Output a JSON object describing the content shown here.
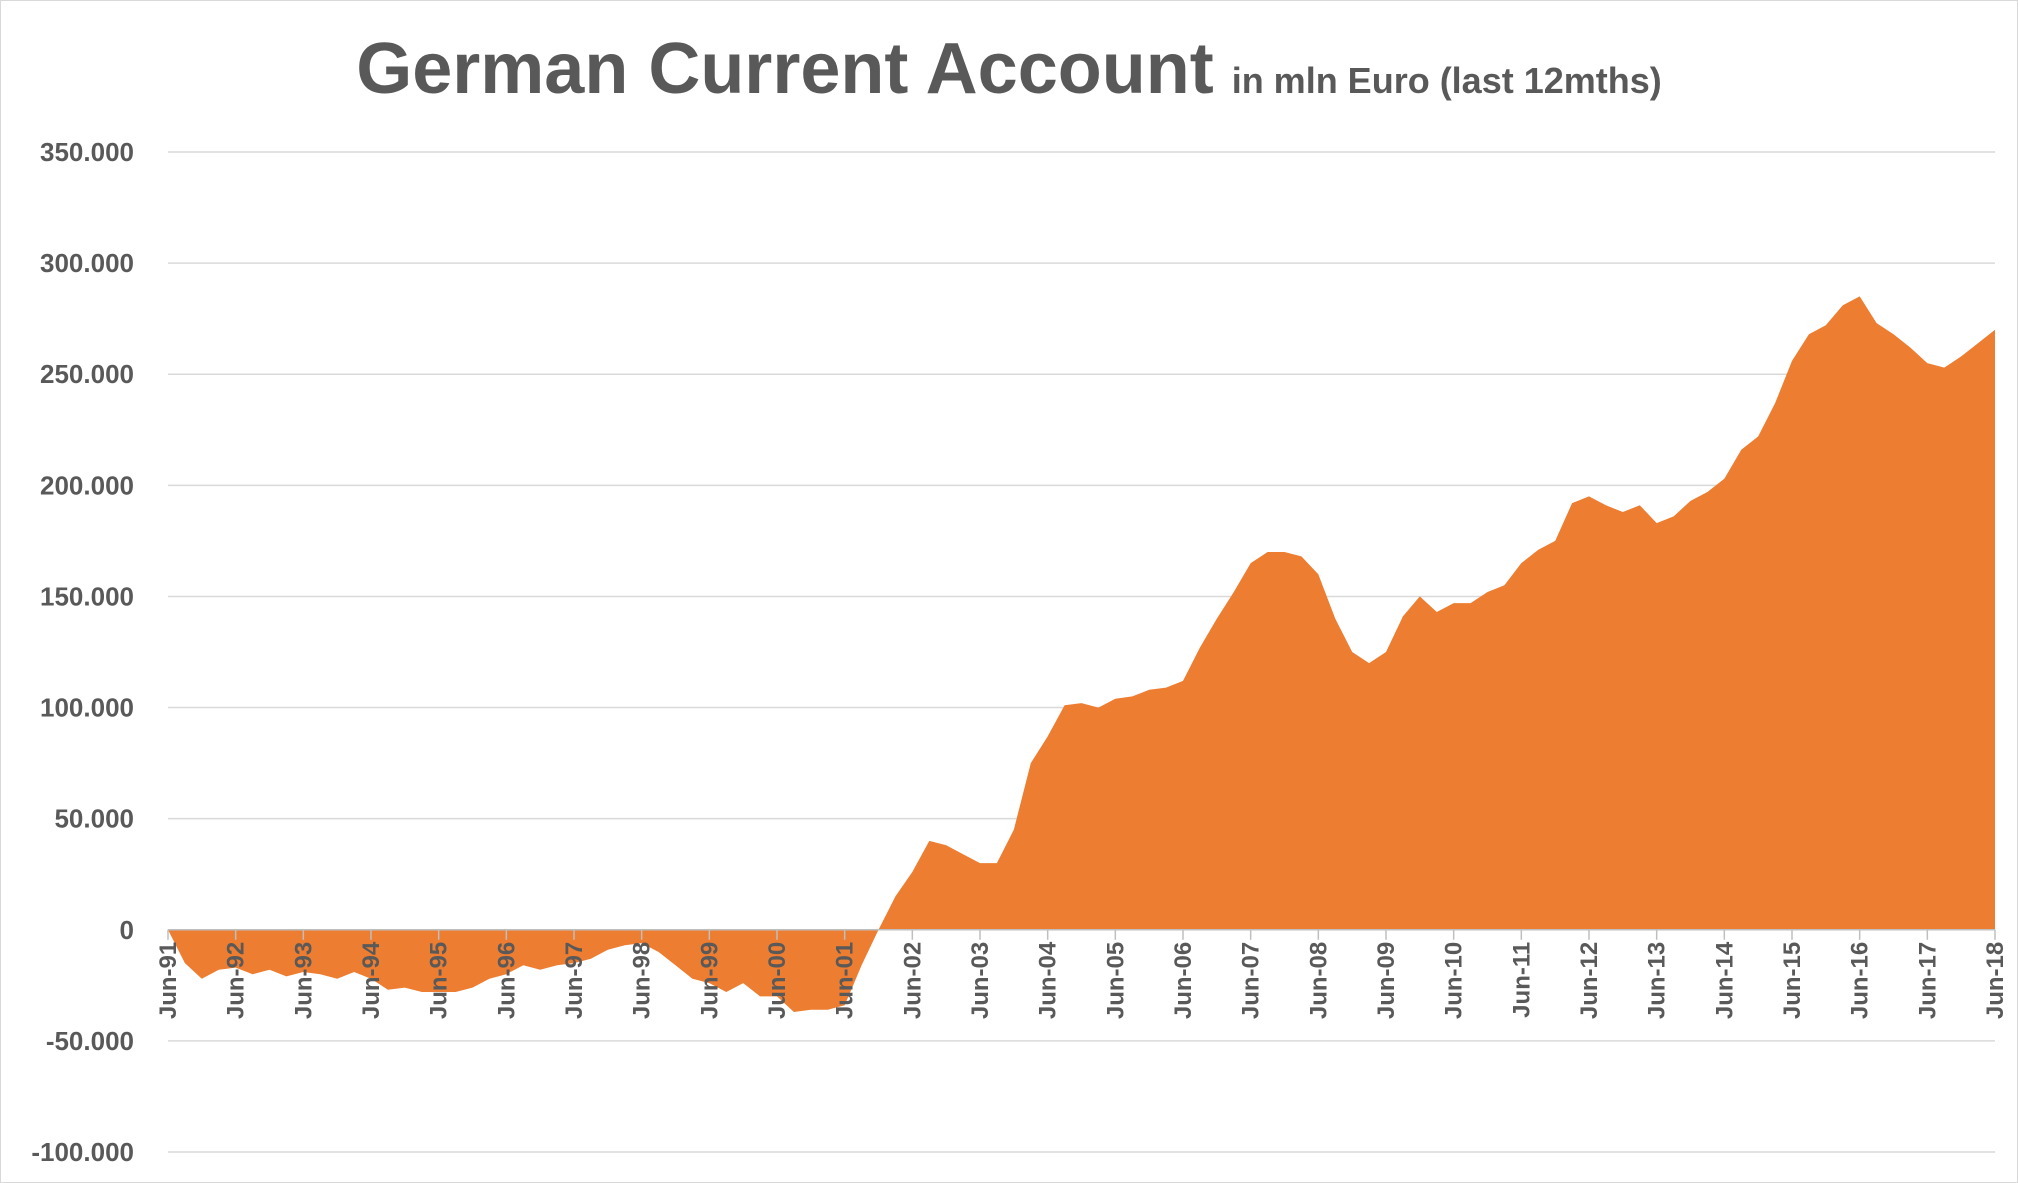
{
  "chart_data": {
    "type": "area",
    "title": "German Current Account",
    "subtitle": "in mln Euro (last 12mths)",
    "xlabel": "",
    "ylabel": "",
    "ylim": [
      -100000,
      350000
    ],
    "y_ticks": [
      -100000,
      -50000,
      0,
      50000,
      100000,
      150000,
      200000,
      250000,
      300000,
      350000
    ],
    "y_tick_labels": [
      "-100.000",
      "-50.000",
      "0",
      "50.000",
      "100.000",
      "150.000",
      "200.000",
      "250.000",
      "300.000",
      "350.000"
    ],
    "x_tick_labels": [
      "Jun-91",
      "Jun-92",
      "Jun-93",
      "Jun-94",
      "Jun-95",
      "Jun-96",
      "Jun-97",
      "Jun-98",
      "Jun-99",
      "Jun-00",
      "Jun-01",
      "Jun-02",
      "Jun-03",
      "Jun-04",
      "Jun-05",
      "Jun-06",
      "Jun-07",
      "Jun-08",
      "Jun-09",
      "Jun-10",
      "Jun-11",
      "Jun-12",
      "Jun-13",
      "Jun-14",
      "Jun-15",
      "Jun-16",
      "Jun-17",
      "Jun-18"
    ],
    "grid": true,
    "colors": {
      "area": "#ed7d31",
      "grid": "#d9d9d9",
      "text": "#595959"
    },
    "series": [
      {
        "x": [
          "Jun-91",
          "Sep-91",
          "Dec-91",
          "Mar-92",
          "Jun-92",
          "Sep-92",
          "Dec-92",
          "Mar-93",
          "Jun-93",
          "Sep-93",
          "Dec-93",
          "Mar-94",
          "Jun-94",
          "Sep-94",
          "Dec-94",
          "Mar-95",
          "Jun-95",
          "Sep-95",
          "Dec-95",
          "Mar-96",
          "Jun-96",
          "Sep-96",
          "Dec-96",
          "Mar-97",
          "Jun-97",
          "Sep-97",
          "Dec-97",
          "Mar-98",
          "Jun-98",
          "Sep-98",
          "Dec-98",
          "Mar-99",
          "Jun-99",
          "Sep-99",
          "Dec-99",
          "Mar-00",
          "Jun-00",
          "Sep-00",
          "Dec-00",
          "Mar-01",
          "Jun-01",
          "Sep-01",
          "Dec-01",
          "Mar-02",
          "Jun-02",
          "Sep-02",
          "Dec-02",
          "Mar-03",
          "Jun-03",
          "Sep-03",
          "Dec-03",
          "Mar-04",
          "Jun-04",
          "Sep-04",
          "Dec-04",
          "Mar-05",
          "Jun-05",
          "Sep-05",
          "Dec-05",
          "Mar-06",
          "Jun-06",
          "Sep-06",
          "Dec-06",
          "Mar-07",
          "Jun-07",
          "Sep-07",
          "Dec-07",
          "Mar-08",
          "Jun-08",
          "Sep-08",
          "Dec-08",
          "Mar-09",
          "Jun-09",
          "Sep-09",
          "Dec-09",
          "Mar-10",
          "Jun-10",
          "Sep-10",
          "Dec-10",
          "Mar-11",
          "Jun-11",
          "Sep-11",
          "Dec-11",
          "Mar-12",
          "Jun-12",
          "Sep-12",
          "Dec-12",
          "Mar-13",
          "Jun-13",
          "Sep-13",
          "Dec-13",
          "Mar-14",
          "Jun-14",
          "Sep-14",
          "Dec-14",
          "Mar-15",
          "Jun-15",
          "Sep-15",
          "Dec-15",
          "Mar-16",
          "Jun-16",
          "Sep-16",
          "Dec-16",
          "Mar-17",
          "Jun-17",
          "Sep-17",
          "Dec-17",
          "Mar-18",
          "Jun-18"
        ],
        "values": [
          0,
          -15000,
          -22000,
          -18000,
          -17000,
          -20000,
          -18000,
          -21000,
          -19000,
          -20000,
          -22000,
          -19000,
          -22000,
          -27000,
          -26000,
          -28000,
          -28000,
          -28000,
          -26000,
          -22000,
          -20000,
          -16000,
          -18000,
          -16000,
          -15000,
          -13000,
          -9000,
          -7000,
          -6000,
          -10000,
          -16000,
          -22000,
          -24000,
          -28000,
          -24000,
          -30000,
          -30000,
          -37000,
          -36000,
          -36000,
          -34000,
          -16000,
          0,
          15000,
          26000,
          40000,
          38000,
          34000,
          30000,
          30000,
          45000,
          75000,
          87000,
          101000,
          102000,
          100000,
          104000,
          105000,
          108000,
          109000,
          112000,
          127000,
          140000,
          152000,
          165000,
          170000,
          170000,
          168000,
          160000,
          140000,
          125000,
          120000,
          125000,
          141000,
          150000,
          143000,
          147000,
          147000,
          152000,
          155000,
          165000,
          171000,
          175000,
          192000,
          195000,
          191000,
          188000,
          191000,
          183000,
          186000,
          193000,
          197000,
          203000,
          216000,
          222000,
          237000,
          256000,
          268000,
          272000,
          281000,
          285000,
          273000,
          268000,
          262000,
          255000,
          253000,
          258000,
          264000,
          270000
        ]
      }
    ]
  }
}
